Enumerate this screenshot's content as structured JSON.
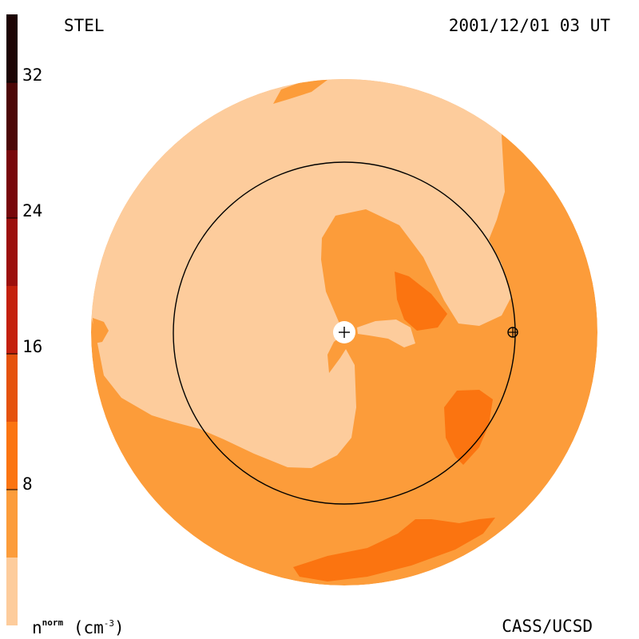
{
  "header": {
    "instrument": "STEL",
    "datetime": "2001/12/01 03 UT"
  },
  "footer": {
    "credit": "CASS/UCSD",
    "quantity": "n",
    "quantity_superscript": "norm",
    "unit_prefix": "(cm",
    "unit_exponent": "-3",
    "unit_suffix": ")"
  },
  "colorbar": {
    "min": 0,
    "max": 36,
    "tick_labels": [
      "32",
      "24",
      "16",
      "8"
    ],
    "tick_values": [
      32,
      24,
      16,
      8
    ],
    "bands": [
      {
        "from": 0,
        "to": 4,
        "color": "#fdcc9c"
      },
      {
        "from": 4,
        "to": 8,
        "color": "#fc9c3a"
      },
      {
        "from": 8,
        "to": 12,
        "color": "#fb7410"
      },
      {
        "from": 12,
        "to": 16,
        "color": "#e5520c"
      },
      {
        "from": 16,
        "to": 20,
        "color": "#c4200c"
      },
      {
        "from": 20,
        "to": 24,
        "color": "#9c0e0c"
      },
      {
        "from": 24,
        "to": 28,
        "color": "#78060a"
      },
      {
        "from": 28,
        "to": 32,
        "color": "#4c0606"
      },
      {
        "from": 32,
        "to": 36,
        "color": "#1c0404"
      }
    ]
  },
  "map": {
    "colors": {
      "low": "#fdcc9c",
      "mid": "#fc9c3a",
      "high": "#fb7410",
      "line": "#000000",
      "sun": "#ffffff"
    },
    "markers": [
      "sun-marker",
      "earth-marker"
    ]
  }
}
